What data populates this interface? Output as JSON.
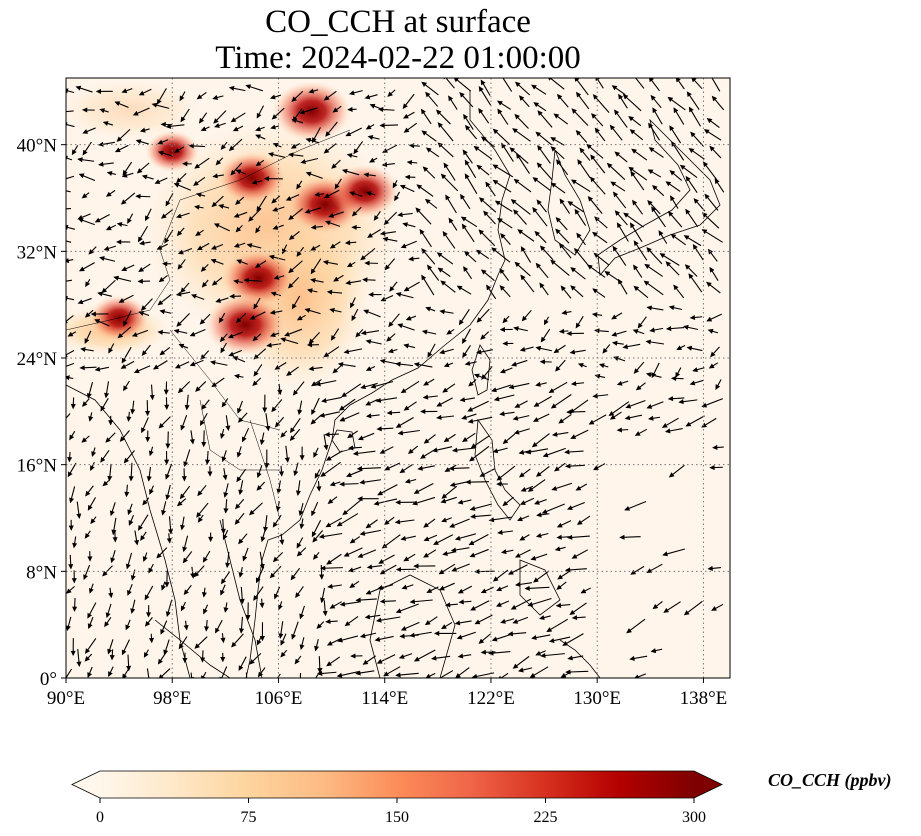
{
  "title": "CO_CCH at surface",
  "subtitle": "Time: 2024-02-22 01:00:00",
  "map": {
    "extent_lon": [
      90,
      140
    ],
    "extent_lat": [
      0,
      45
    ],
    "lon_ticks": [
      {
        "value": 90,
        "label": "90°E"
      },
      {
        "value": 98,
        "label": "98°E"
      },
      {
        "value": 106,
        "label": "106°E"
      },
      {
        "value": 114,
        "label": "114°E"
      },
      {
        "value": 122,
        "label": "122°E"
      },
      {
        "value": 130,
        "label": "130°E"
      },
      {
        "value": 138,
        "label": "138°E"
      }
    ],
    "lat_ticks": [
      {
        "value": 0,
        "label": "0°"
      },
      {
        "value": 8,
        "label": "8°N"
      },
      {
        "value": 16,
        "label": "16°N"
      },
      {
        "value": 24,
        "label": "24°N"
      },
      {
        "value": 32,
        "label": "32°N"
      },
      {
        "value": 40,
        "label": "40°N"
      }
    ],
    "gridlines": true,
    "background_color": "#fff5eb",
    "high_concentration_areas": [
      {
        "lon": 104.0,
        "lat": 37.5,
        "value": 220
      },
      {
        "lon": 109.5,
        "lat": 35.5,
        "value": 260
      },
      {
        "lon": 112.5,
        "lat": 36.5,
        "value": 230
      },
      {
        "lon": 104.5,
        "lat": 30.0,
        "value": 250
      },
      {
        "lon": 103.5,
        "lat": 26.5,
        "value": 290
      },
      {
        "lon": 108.5,
        "lat": 42.5,
        "value": 280
      },
      {
        "lon": 94.0,
        "lat": 27.0,
        "value": 180
      },
      {
        "lon": 98.0,
        "lat": 39.5,
        "value": 150
      }
    ]
  },
  "colorbar": {
    "label": "CO_CCH (ppbv)",
    "min": 0,
    "max": 300,
    "ticks": [
      "0",
      "75",
      "150",
      "225",
      "300"
    ],
    "colormap": "OrRd",
    "colors": [
      "#fff7ec",
      "#fee8c8",
      "#fdd49e",
      "#fdbb84",
      "#fc8d59",
      "#ef6548",
      "#d7301f",
      "#b30000",
      "#7f0000"
    ],
    "extend": "both"
  }
}
